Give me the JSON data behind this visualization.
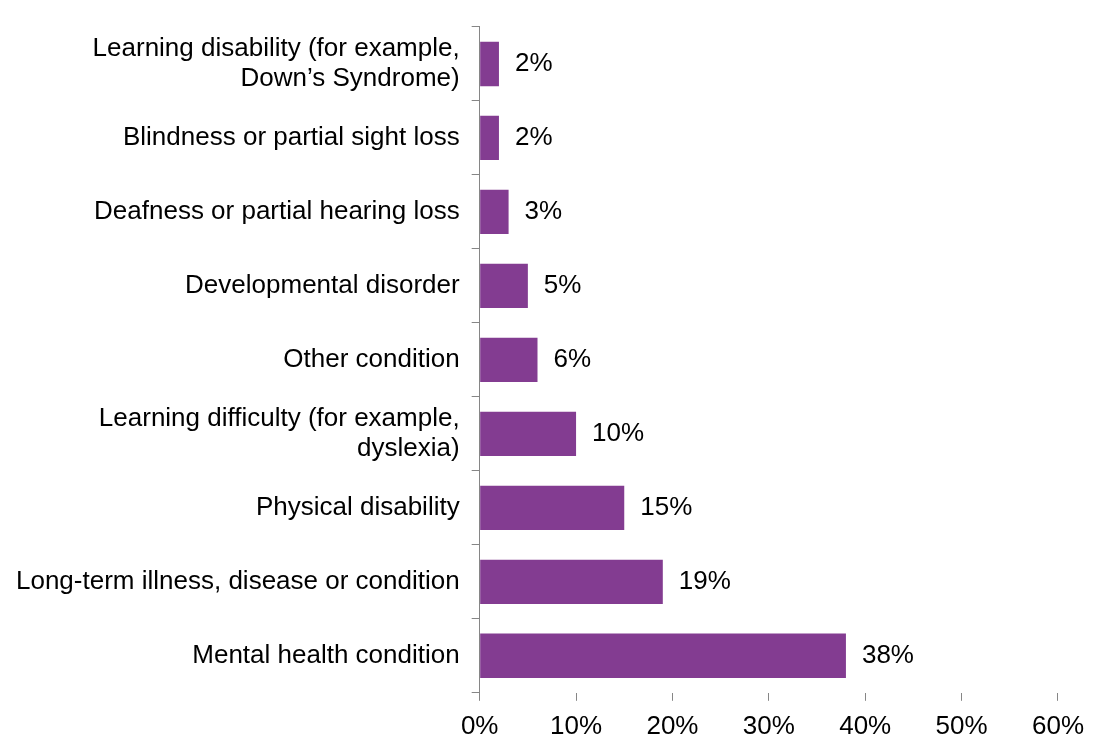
{
  "chart_data": {
    "type": "bar",
    "orientation": "horizontal",
    "categories": [
      "Learning disability (for example, Down’s Syndrome)",
      "Blindness or partial sight loss",
      "Deafness or partial hearing loss",
      "Developmental disorder",
      "Other condition",
      "Learning difficulty (for example, dyslexia)",
      "Physical disability",
      "Long-term illness, disease or condition",
      "Mental health condition"
    ],
    "values": [
      2,
      2,
      3,
      5,
      6,
      10,
      15,
      19,
      38
    ],
    "value_labels": [
      "2%",
      "2%",
      "3%",
      "5%",
      "6%",
      "10%",
      "15%",
      "19%",
      "38%"
    ],
    "color": "#833c91",
    "xlim": [
      0,
      60
    ],
    "xticks": [
      {
        "value": 0,
        "label": "0%"
      },
      {
        "value": 10,
        "label": "10%"
      },
      {
        "value": 20,
        "label": "20%"
      },
      {
        "value": 30,
        "label": "30%"
      },
      {
        "value": 40,
        "label": "40%"
      },
      {
        "value": 50,
        "label": "50%"
      },
      {
        "value": 60,
        "label": "60%"
      }
    ],
    "grid": false,
    "legend": false
  }
}
